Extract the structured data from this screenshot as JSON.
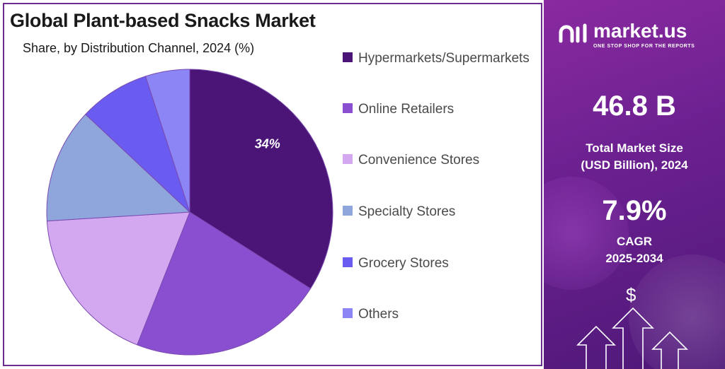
{
  "title": "Global Plant-based Snacks Market",
  "subtitle": "Share, by Distribution Channel, 2024 (%)",
  "colors": {
    "border": "#6a2c91",
    "panel": "#6d2191"
  },
  "chart_data": {
    "type": "pie",
    "title": "Global Plant-based Snacks Market",
    "subtitle": "Share, by Distribution Channel, 2024 (%)",
    "start_angle_deg": 0,
    "direction": "clockwise",
    "legend_position": "right",
    "slices": [
      {
        "label": "Hypermarkets/Supermarkets",
        "value": 34,
        "color": "#4b1578",
        "data_label": "34%"
      },
      {
        "label": "Online Retailers",
        "value": 22,
        "color": "#8a4fd1",
        "data_label": ""
      },
      {
        "label": "Convenience Stores",
        "value": 18,
        "color": "#d4a8f0",
        "data_label": ""
      },
      {
        "label": "Specialty Stores",
        "value": 13,
        "color": "#8fa6dc",
        "data_label": ""
      },
      {
        "label": "Grocery Stores",
        "value": 8,
        "color": "#6a5cf0",
        "data_label": ""
      },
      {
        "label": "Others",
        "value": 5,
        "color": "#8c85f5",
        "data_label": ""
      }
    ]
  },
  "legend": [
    {
      "label": "Hypermarkets/Supermarkets",
      "color": "#4b1578"
    },
    {
      "label": "Online Retailers",
      "color": "#8a4fd1"
    },
    {
      "label": "Convenience Stores",
      "color": "#d4a8f0"
    },
    {
      "label": "Specialty Stores",
      "color": "#8fa6dc"
    },
    {
      "label": "Grocery Stores",
      "color": "#6a5cf0"
    },
    {
      "label": "Others",
      "color": "#8c85f5"
    }
  ],
  "sidebar": {
    "logo_text": "market.us",
    "logo_tagline": "ONE STOP SHOP FOR THE REPORTS",
    "market_size_value": "46.8 B",
    "market_size_label_line1": "Total Market Size",
    "market_size_label_line2": "(USD Billion), 2024",
    "cagr_value": "7.9%",
    "cagr_label_line1": "CAGR",
    "cagr_label_line2": "2025-2034",
    "dollar_symbol": "$"
  }
}
